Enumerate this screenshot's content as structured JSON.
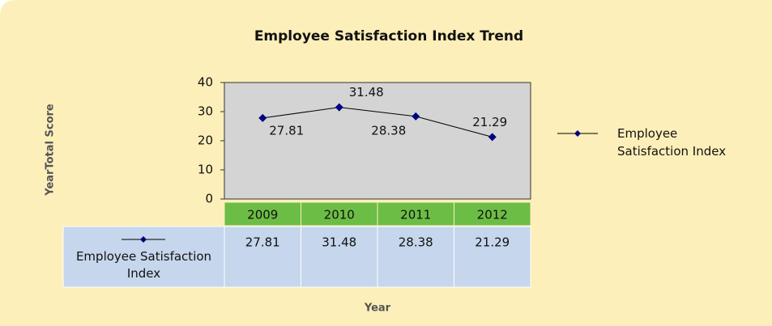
{
  "chart_data": {
    "type": "line",
    "title": "Employee Satisfaction Index Trend",
    "xlabel": "Year",
    "ylabel": "YearTotal Score",
    "categories": [
      "2009",
      "2010",
      "2011",
      "2012"
    ],
    "series": [
      {
        "name": "Employee Satisfaction Index",
        "color": "#000080",
        "values": [
          27.81,
          31.48,
          28.38,
          21.29
        ]
      }
    ],
    "ylim": [
      0,
      40
    ],
    "yticks": [
      0,
      10,
      20,
      30,
      40
    ],
    "grid": false,
    "legend": "right",
    "data_table": true
  }
}
